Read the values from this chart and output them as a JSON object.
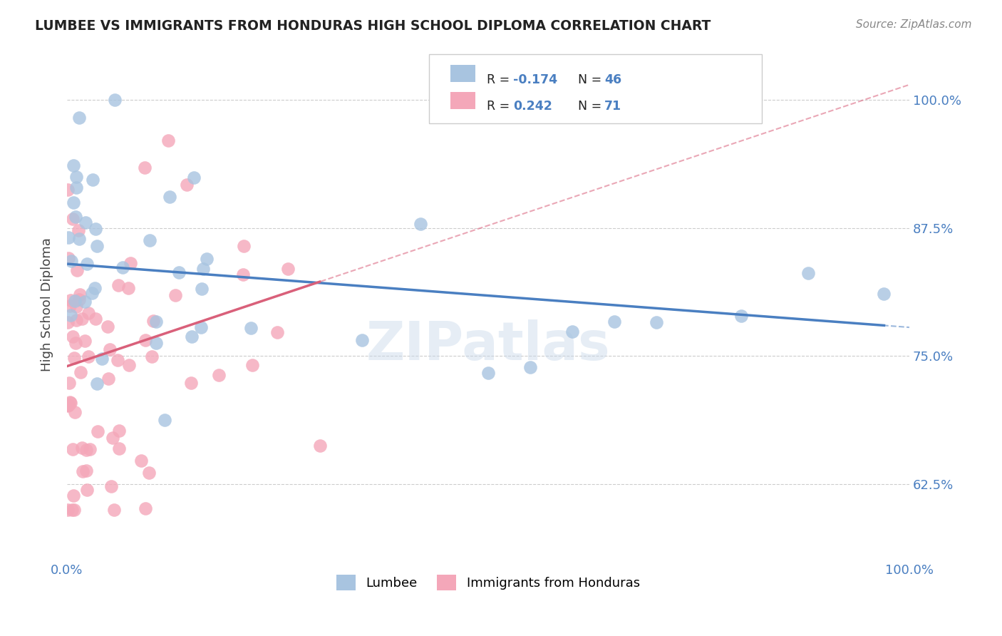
{
  "title": "LUMBEE VS IMMIGRANTS FROM HONDURAS HIGH SCHOOL DIPLOMA CORRELATION CHART",
  "source": "Source: ZipAtlas.com",
  "ylabel": "High School Diploma",
  "yticks": [
    62.5,
    75.0,
    87.5,
    100.0
  ],
  "ytick_labels": [
    "62.5%",
    "75.0%",
    "87.5%",
    "100.0%"
  ],
  "lumbee_color": "#a8c4e0",
  "honduras_color": "#f4a7b9",
  "lumbee_line_color": "#4a7fc1",
  "honduras_line_color": "#d9607a",
  "lumbee_R": -0.174,
  "lumbee_N": 46,
  "honduras_R": 0.242,
  "honduras_N": 71,
  "watermark": "ZIPatlas",
  "background_color": "#ffffff",
  "grid_color": "#cccccc",
  "legend_R_N_color": "#4a7fc1",
  "legend_label_color": "#222222"
}
